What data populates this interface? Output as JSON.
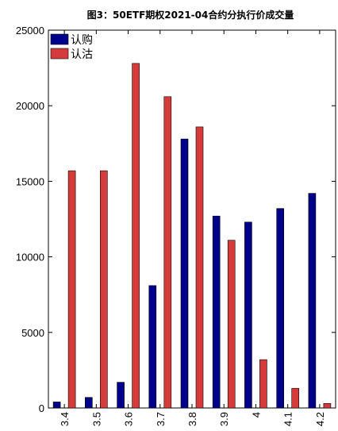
{
  "chart_data": {
    "type": "bar",
    "title": "图3：50ETF期权2021-04合约分执行价成交量",
    "xlabel": "",
    "ylabel": "",
    "categories": [
      "3.4",
      "3.5",
      "3.6",
      "3.7",
      "3.8",
      "3.9",
      "4",
      "4.1",
      "4.2"
    ],
    "ylim": [
      0,
      25000
    ],
    "yticks": [
      0,
      5000,
      10000,
      15000,
      20000,
      25000
    ],
    "grid": false,
    "legend_position": "top-left",
    "series": [
      {
        "name": "认购",
        "color": "#00008b",
        "values": [
          400,
          700,
          1700,
          8100,
          17800,
          12700,
          12300,
          13200,
          14200
        ]
      },
      {
        "name": "认沽",
        "color": "#d63b3b",
        "values": [
          15700,
          15700,
          22800,
          20600,
          18600,
          11100,
          3200,
          1300,
          300
        ]
      }
    ]
  }
}
